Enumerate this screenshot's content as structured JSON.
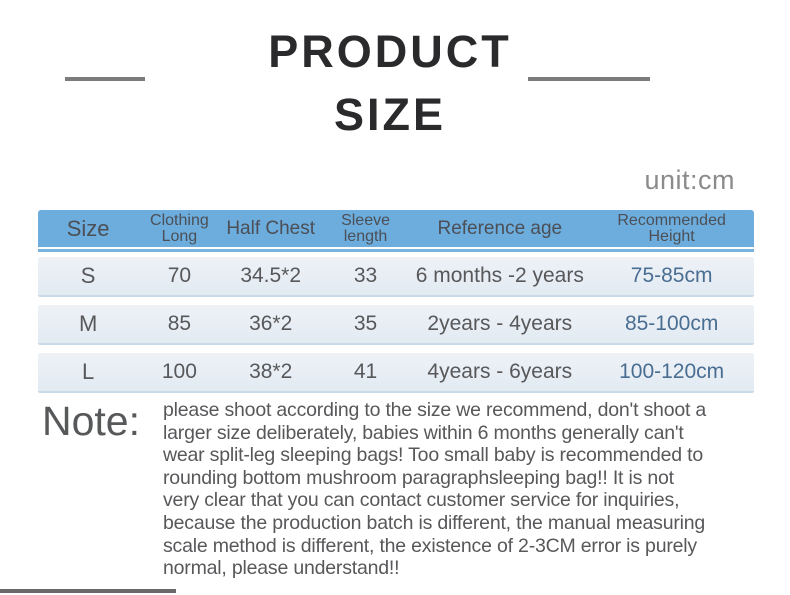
{
  "title": {
    "line1": "PRODUCT",
    "line2": "SIZE"
  },
  "unit_label": "unit:cm",
  "table": {
    "headers": [
      "Size",
      "Clothing\nLong",
      "Half Chest",
      "Sleeve\nlength",
      "Reference age",
      "Recommended\nHeight"
    ],
    "rows": [
      [
        "S",
        "70",
        "34.5*2",
        "33",
        "6 months -2 years",
        "75-85cm"
      ],
      [
        "M",
        "85",
        "36*2",
        "35",
        "2years - 4years",
        "85-100cm"
      ],
      [
        "L",
        "100",
        "38*2",
        "41",
        "4years - 6years",
        "100-120cm"
      ]
    ]
  },
  "note": {
    "label": "Note:",
    "text": "please shoot according to the size we recommend, don't shoot a\nlarger size deliberately, babies within 6 months generally can't\nwear split-leg sleeping bags! Too small baby is recommended to\nrounding bottom mushroom paragraphsleeping bag!! It is not\nvery clear that you can contact customer service for inquiries,\nbecause the production batch is different, the manual measuring\nscale method is different, the existence of 2-3CM error is purely\nnormal, please understand!!"
  },
  "colors": {
    "header_bg": "#6caddd",
    "row_bg_top": "#eef2f7",
    "row_bg_bottom": "#e2eaf2",
    "height_column_text": "#4a6e92",
    "body_text": "#58585a",
    "title_text": "#2a2a2c",
    "unit_text": "#8b8b8b",
    "dash_line": "#7b7b7b"
  }
}
